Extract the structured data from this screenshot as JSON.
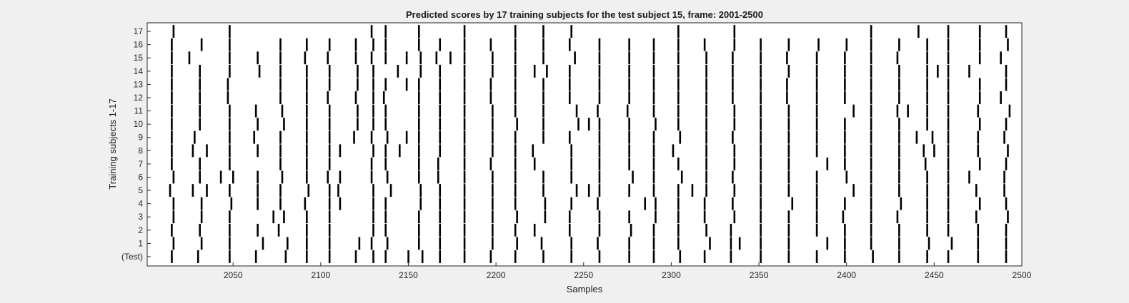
{
  "chart_data": {
    "type": "raster",
    "title": "Predicted scores by 17 training subjects for the test subject 15, frame: 2001-2500",
    "xlabel": "Samples",
    "ylabel": "Training subjects 1-17",
    "xlim": [
      2001,
      2500
    ],
    "xticks": [
      2050,
      2100,
      2150,
      2200,
      2250,
      2300,
      2350,
      2400,
      2450,
      2500
    ],
    "yticklabels": [
      "(Test)",
      "1",
      "2",
      "3",
      "4",
      "5",
      "6",
      "7",
      "8",
      "9",
      "10",
      "11",
      "12",
      "13",
      "14",
      "15",
      "16",
      "17"
    ],
    "colors": {
      "background": "#f0f0f0",
      "plot_area": "#ffffff",
      "marks": "#000000"
    },
    "rows": [
      {
        "label": "(Test)",
        "events": [
          2015,
          2030,
          2048,
          2063,
          2080,
          2092,
          2105,
          2120,
          2130,
          2137,
          2150,
          2158,
          2168,
          2182,
          2197,
          2211,
          2227,
          2243,
          2259,
          2276,
          2290,
          2305,
          2319,
          2334,
          2351,
          2367,
          2383,
          2399,
          2415,
          2430,
          2446,
          2458,
          2475,
          2491
        ]
      },
      {
        "label": "1",
        "events": [
          2016,
          2032,
          2048,
          2067,
          2081,
          2092,
          2105,
          2122,
          2129,
          2138,
          2156,
          2168,
          2182,
          2198,
          2212,
          2226,
          2243,
          2258,
          2276,
          2290,
          2304,
          2322,
          2334,
          2339,
          2351,
          2367,
          2389,
          2399,
          2414,
          2430,
          2447,
          2460,
          2475,
          2491
        ]
      },
      {
        "label": "2",
        "events": [
          2015,
          2031,
          2048,
          2064,
          2076,
          2092,
          2105,
          2130,
          2137,
          2156,
          2168,
          2182,
          2198,
          2211,
          2222,
          2242,
          2259,
          2277,
          2290,
          2304,
          2320,
          2334,
          2351,
          2367,
          2383,
          2399,
          2414,
          2430,
          2446,
          2458,
          2475,
          2491
        ]
      },
      {
        "label": "3",
        "events": [
          2016,
          2032,
          2048,
          2073,
          2079,
          2092,
          2105,
          2130,
          2137,
          2156,
          2168,
          2182,
          2198,
          2212,
          2228,
          2242,
          2259,
          2276,
          2291,
          2304,
          2319,
          2336,
          2351,
          2367,
          2383,
          2398,
          2414,
          2429,
          2446,
          2458,
          2474,
          2492
        ]
      },
      {
        "label": "4",
        "events": [
          2016,
          2032,
          2049,
          2064,
          2077,
          2091,
          2105,
          2111,
          2130,
          2137,
          2157,
          2168,
          2182,
          2198,
          2211,
          2228,
          2243,
          2258,
          2285,
          2291,
          2304,
          2319,
          2335,
          2351,
          2369,
          2383,
          2399,
          2414,
          2431,
          2446,
          2458,
          2476,
          2491
        ]
      },
      {
        "label": "5",
        "events": [
          2014,
          2027,
          2035,
          2048,
          2064,
          2077,
          2093,
          2105,
          2110,
          2130,
          2140,
          2157,
          2168,
          2182,
          2198,
          2211,
          2227,
          2246,
          2253,
          2259,
          2276,
          2290,
          2304,
          2312,
          2320,
          2336,
          2351,
          2367,
          2383,
          2404,
          2414,
          2430,
          2446,
          2458,
          2474,
          2490
        ]
      },
      {
        "label": "6",
        "events": [
          2016,
          2031,
          2043,
          2050,
          2064,
          2078,
          2092,
          2104,
          2111,
          2129,
          2138,
          2156,
          2167,
          2182,
          2198,
          2211,
          2227,
          2243,
          2259,
          2278,
          2290,
          2306,
          2320,
          2335,
          2351,
          2367,
          2383,
          2400,
          2414,
          2430,
          2446,
          2458,
          2470,
          2490
        ]
      },
      {
        "label": "7",
        "events": [
          2015,
          2031,
          2048,
          2077,
          2092,
          2105,
          2129,
          2137,
          2156,
          2167,
          2182,
          2197,
          2211,
          2222,
          2243,
          2259,
          2276,
          2290,
          2304,
          2320,
          2336,
          2351,
          2367,
          2389,
          2399,
          2414,
          2430,
          2445,
          2458,
          2476,
          2491
        ]
      },
      {
        "label": "8",
        "events": [
          2015,
          2027,
          2035,
          2048,
          2064,
          2077,
          2092,
          2105,
          2111,
          2130,
          2137,
          2145,
          2156,
          2168,
          2182,
          2198,
          2211,
          2221,
          2243,
          2259,
          2276,
          2290,
          2301,
          2320,
          2336,
          2351,
          2367,
          2383,
          2399,
          2414,
          2430,
          2444,
          2450,
          2458,
          2475,
          2492
        ]
      },
      {
        "label": "9",
        "events": [
          2015,
          2028,
          2048,
          2062,
          2077,
          2092,
          2105,
          2119,
          2129,
          2138,
          2149,
          2156,
          2168,
          2182,
          2198,
          2211,
          2227,
          2242,
          2259,
          2276,
          2290,
          2305,
          2320,
          2335,
          2351,
          2367,
          2383,
          2399,
          2414,
          2430,
          2440,
          2449,
          2458,
          2475,
          2490
        ]
      },
      {
        "label": "10",
        "events": [
          2015,
          2031,
          2048,
          2064,
          2079,
          2092,
          2105,
          2121,
          2130,
          2137,
          2156,
          2168,
          2182,
          2198,
          2212,
          2227,
          2247,
          2253,
          2259,
          2276,
          2291,
          2304,
          2320,
          2336,
          2351,
          2367,
          2383,
          2399,
          2414,
          2430,
          2446,
          2458,
          2476,
          2491
        ]
      },
      {
        "label": "11",
        "events": [
          2015,
          2031,
          2048,
          2063,
          2078,
          2092,
          2105,
          2121,
          2130,
          2137,
          2156,
          2168,
          2182,
          2198,
          2211,
          2227,
          2246,
          2258,
          2275,
          2290,
          2304,
          2320,
          2336,
          2351,
          2367,
          2383,
          2404,
          2414,
          2429,
          2435,
          2446,
          2458,
          2475,
          2493
        ]
      },
      {
        "label": "12",
        "events": [
          2015,
          2031,
          2047,
          2077,
          2092,
          2104,
          2120,
          2130,
          2136,
          2156,
          2168,
          2182,
          2197,
          2211,
          2227,
          2242,
          2259,
          2276,
          2290,
          2304,
          2320,
          2335,
          2351,
          2366,
          2383,
          2399,
          2414,
          2430,
          2446,
          2458,
          2476,
          2488
        ]
      },
      {
        "label": "13",
        "events": [
          2015,
          2031,
          2047,
          2077,
          2092,
          2105,
          2121,
          2130,
          2137,
          2149,
          2156,
          2168,
          2182,
          2197,
          2211,
          2227,
          2242,
          2259,
          2276,
          2290,
          2304,
          2320,
          2335,
          2351,
          2366,
          2383,
          2399,
          2414,
          2430,
          2446,
          2458,
          2476,
          2491
        ]
      },
      {
        "label": "14",
        "events": [
          2015,
          2031,
          2048,
          2065,
          2077,
          2092,
          2105,
          2121,
          2130,
          2144,
          2157,
          2168,
          2182,
          2198,
          2211,
          2222,
          2229,
          2242,
          2259,
          2276,
          2290,
          2304,
          2320,
          2335,
          2351,
          2367,
          2383,
          2399,
          2414,
          2430,
          2446,
          2452,
          2458,
          2470,
          2491
        ]
      },
      {
        "label": "15",
        "events": [
          2015,
          2025,
          2048,
          2064,
          2077,
          2091,
          2104,
          2120,
          2129,
          2137,
          2149,
          2157,
          2166,
          2174,
          2182,
          2198,
          2211,
          2227,
          2245,
          2259,
          2276,
          2290,
          2304,
          2320,
          2335,
          2351,
          2366,
          2383,
          2399,
          2414,
          2429,
          2446,
          2458,
          2476,
          2488
        ]
      },
      {
        "label": "16",
        "events": [
          2015,
          2032,
          2048,
          2077,
          2092,
          2105,
          2120,
          2130,
          2137,
          2156,
          2168,
          2182,
          2197,
          2211,
          2227,
          2242,
          2259,
          2276,
          2290,
          2304,
          2319,
          2336,
          2351,
          2367,
          2384,
          2400,
          2414,
          2430,
          2446,
          2458,
          2476,
          2492
        ]
      },
      {
        "label": "17",
        "events": [
          2016,
          2048,
          2129,
          2137,
          2156,
          2182,
          2211,
          2227,
          2243,
          2304,
          2336,
          2414,
          2441,
          2458,
          2476,
          2491
        ]
      }
    ]
  }
}
